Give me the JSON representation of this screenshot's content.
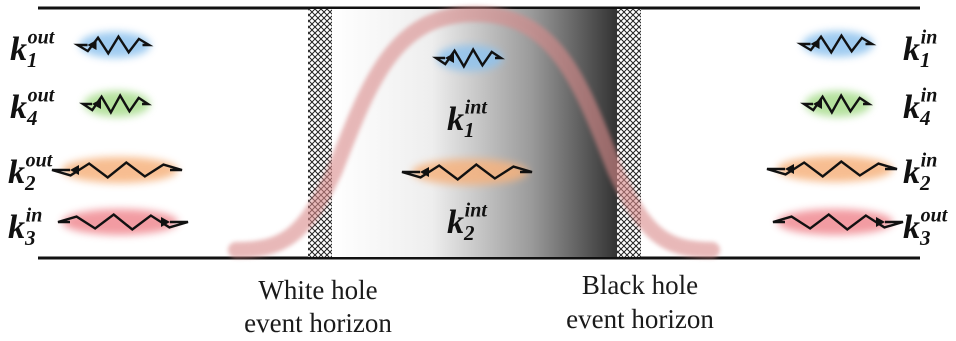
{
  "labels": {
    "left": [
      {
        "base": "k",
        "sub": "1",
        "sup": "out",
        "glow": "blue"
      },
      {
        "base": "k",
        "sub": "4",
        "sup": "out",
        "glow": "green"
      },
      {
        "base": "k",
        "sub": "2",
        "sup": "out",
        "glow": "orange"
      },
      {
        "base": "k",
        "sub": "3",
        "sup": "in",
        "glow": "red"
      }
    ],
    "center": [
      {
        "base": "k",
        "sub": "1",
        "sup": "int",
        "glow": "blue"
      },
      {
        "base": "k",
        "sub": "2",
        "sup": "int",
        "glow": "orange"
      }
    ],
    "right": [
      {
        "base": "k",
        "sub": "1",
        "sup": "in",
        "glow": "blue"
      },
      {
        "base": "k",
        "sub": "4",
        "sup": "in",
        "glow": "green"
      },
      {
        "base": "k",
        "sub": "2",
        "sup": "in",
        "glow": "orange"
      },
      {
        "base": "k",
        "sub": "3",
        "sup": "out",
        "glow": "red"
      }
    ]
  },
  "captions": {
    "white_hole_line1": "White hole",
    "white_hole_line2": "event horizon",
    "black_hole_line1": "Black hole",
    "black_hole_line2": "event horizon"
  },
  "colors": {
    "blue": "#8fc3ee",
    "green": "#a9dd8e",
    "orange": "#f6b27e",
    "red": "#f08a92",
    "profile": "#d98a8a"
  }
}
